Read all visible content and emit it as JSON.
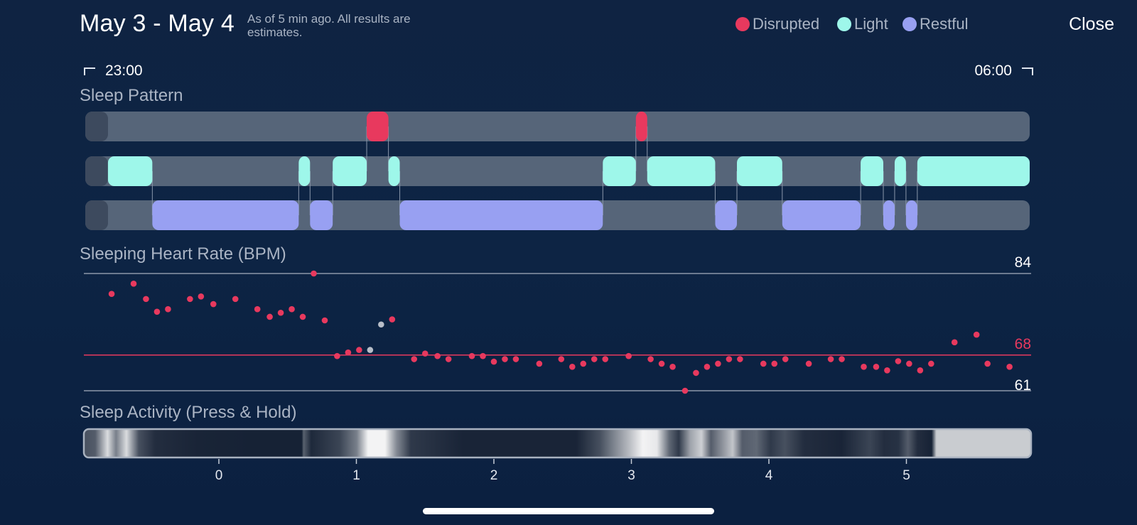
{
  "header": {
    "date_range": "May 3 - May 4",
    "subtitle": "As of 5 min ago. All results are estimates.",
    "close_label": "Close"
  },
  "legend": [
    {
      "label": "Disrupted",
      "color": "#e8395e"
    },
    {
      "label": "Light",
      "color": "#9ef7ea"
    },
    {
      "label": "Restful",
      "color": "#98a0f2"
    }
  ],
  "time_range": {
    "start": "23:00",
    "end": "06:00"
  },
  "sleep_pattern": {
    "title": "Sleep Pattern",
    "track_color": "#566579",
    "disrupted": [
      [
        0.298,
        0.321
      ],
      [
        0.583,
        0.595
      ]
    ],
    "light": [
      [
        0.024,
        0.071
      ],
      [
        0.226,
        0.238
      ],
      [
        0.262,
        0.298
      ],
      [
        0.321,
        0.333
      ],
      [
        0.548,
        0.583
      ],
      [
        0.595,
        0.667
      ],
      [
        0.69,
        0.738
      ],
      [
        0.821,
        0.845
      ],
      [
        0.857,
        0.869
      ],
      [
        0.881,
        1.0
      ]
    ],
    "restful": [
      [
        0.071,
        0.226
      ],
      [
        0.238,
        0.262
      ],
      [
        0.333,
        0.548
      ],
      [
        0.667,
        0.69
      ],
      [
        0.738,
        0.821
      ],
      [
        0.845,
        0.857
      ],
      [
        0.869,
        0.881
      ]
    ]
  },
  "heart_rate": {
    "title": "Sleeping Heart Rate (BPM)",
    "max_label": "84",
    "avg_label": "68",
    "min_label": "61",
    "max": 84,
    "avg": 68,
    "min": 61,
    "dot_color": "#e8395e",
    "muted_dot_color": "#b8bec8",
    "points": [
      [
        -0.78,
        80
      ],
      [
        -0.62,
        82
      ],
      [
        -0.53,
        79
      ],
      [
        -0.45,
        76.5
      ],
      [
        -0.37,
        77
      ],
      [
        -0.21,
        79
      ],
      [
        -0.13,
        79.5
      ],
      [
        -0.04,
        78
      ],
      [
        0.12,
        79
      ],
      [
        0.28,
        77
      ],
      [
        0.37,
        75.5
      ],
      [
        0.45,
        76.3
      ],
      [
        0.53,
        77
      ],
      [
        0.61,
        75.5
      ],
      [
        0.69,
        84
      ],
      [
        0.77,
        74.8
      ],
      [
        0.86,
        67.8
      ],
      [
        0.94,
        68.5
      ],
      [
        1.02,
        69
      ],
      [
        1.1,
        69,
        "muted"
      ],
      [
        1.18,
        74,
        "muted"
      ],
      [
        1.26,
        75
      ],
      [
        1.42,
        67.2
      ],
      [
        1.5,
        68.3
      ],
      [
        1.59,
        67.8
      ],
      [
        1.67,
        67.2
      ],
      [
        1.84,
        67.8
      ],
      [
        1.92,
        67.8
      ],
      [
        2.0,
        66.7
      ],
      [
        2.08,
        67.2
      ],
      [
        2.16,
        67.2
      ],
      [
        2.33,
        66.3
      ],
      [
        2.49,
        67.2
      ],
      [
        2.57,
        65.7
      ],
      [
        2.65,
        66.3
      ],
      [
        2.73,
        67.2
      ],
      [
        2.81,
        67.2
      ],
      [
        2.98,
        67.8
      ],
      [
        3.14,
        67.2
      ],
      [
        3.22,
        66.3
      ],
      [
        3.3,
        65.7
      ],
      [
        3.39,
        61
      ],
      [
        3.47,
        64.5
      ],
      [
        3.55,
        65.7
      ],
      [
        3.63,
        66.3
      ],
      [
        3.71,
        67.2
      ],
      [
        3.79,
        67.2
      ],
      [
        3.96,
        66.3
      ],
      [
        4.04,
        66.3
      ],
      [
        4.12,
        67.2
      ],
      [
        4.29,
        66.3
      ],
      [
        4.45,
        67.2
      ],
      [
        4.53,
        67.2
      ],
      [
        4.69,
        65.7
      ],
      [
        4.78,
        65.7
      ],
      [
        4.86,
        65.0
      ],
      [
        4.94,
        66.8
      ],
      [
        5.02,
        66.3
      ],
      [
        5.1,
        65.0
      ],
      [
        5.18,
        66.3
      ],
      [
        5.35,
        70.5
      ],
      [
        5.51,
        72
      ],
      [
        5.59,
        66.3
      ],
      [
        5.75,
        65.7
      ]
    ]
  },
  "sleep_activity": {
    "title": "Sleep Activity (Press & Hold)",
    "x_axis_ticks": [
      "0",
      "1",
      "2",
      "3",
      "4",
      "5"
    ],
    "levels": [
      [
        0.0,
        0.25
      ],
      [
        0.012,
        0.3
      ],
      [
        0.025,
        0.85
      ],
      [
        0.034,
        0.45
      ],
      [
        0.045,
        0.85
      ],
      [
        0.058,
        0.25
      ],
      [
        0.075,
        0.1
      ],
      [
        0.12,
        0.06
      ],
      [
        0.18,
        0.05
      ],
      [
        0.23,
        0.05
      ],
      [
        0.225,
        0.05
      ],
      [
        0.232,
        0.32
      ],
      [
        0.24,
        0.08
      ],
      [
        0.27,
        0.2
      ],
      [
        0.288,
        0.45
      ],
      [
        0.3,
        0.95
      ],
      [
        0.318,
        0.95
      ],
      [
        0.33,
        0.5
      ],
      [
        0.345,
        0.15
      ],
      [
        0.4,
        0.06
      ],
      [
        0.46,
        0.06
      ],
      [
        0.52,
        0.06
      ],
      [
        0.545,
        0.25
      ],
      [
        0.558,
        0.45
      ],
      [
        0.575,
        0.7
      ],
      [
        0.59,
        0.95
      ],
      [
        0.605,
        0.9
      ],
      [
        0.618,
        0.35
      ],
      [
        0.628,
        0.15
      ],
      [
        0.64,
        0.6
      ],
      [
        0.652,
        0.8
      ],
      [
        0.662,
        0.3
      ],
      [
        0.675,
        0.55
      ],
      [
        0.685,
        0.75
      ],
      [
        0.695,
        0.3
      ],
      [
        0.71,
        0.35
      ],
      [
        0.725,
        0.15
      ],
      [
        0.74,
        0.25
      ],
      [
        0.76,
        0.1
      ],
      [
        0.8,
        0.06
      ],
      [
        0.83,
        0.2
      ],
      [
        0.845,
        0.1
      ],
      [
        0.86,
        0.12
      ],
      [
        0.87,
        0.3
      ],
      [
        0.88,
        0.1
      ],
      [
        0.895,
        0.05
      ],
      [
        0.9,
        0.78
      ],
      [
        1.0,
        0.78
      ]
    ]
  }
}
